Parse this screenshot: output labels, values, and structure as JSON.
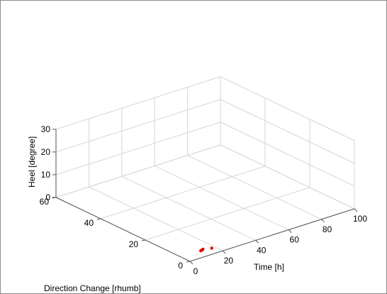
{
  "chart_data": {
    "type": "scatter",
    "xlabel": "Time [h]",
    "ylabel": "Direction Change [rhumb]",
    "zlabel": "Heel [degree]",
    "xlim": [
      0,
      100
    ],
    "ylim": [
      0,
      60
    ],
    "zlim": [
      0,
      30
    ],
    "xticks": [
      "0",
      "20",
      "40",
      "60",
      "80",
      "100"
    ],
    "yticks": [
      "0",
      "20",
      "40",
      "60"
    ],
    "zticks": [
      "0",
      "10",
      "20",
      "30"
    ],
    "grid": true,
    "marker_color": "#e00000",
    "points": [
      {
        "x": 12,
        "y": 4,
        "z": 0
      },
      {
        "x": 13,
        "y": 4.2,
        "z": 0
      },
      {
        "x": 14,
        "y": 4.5,
        "z": 0
      },
      {
        "x": 18,
        "y": 3.5,
        "z": 0
      }
    ]
  }
}
